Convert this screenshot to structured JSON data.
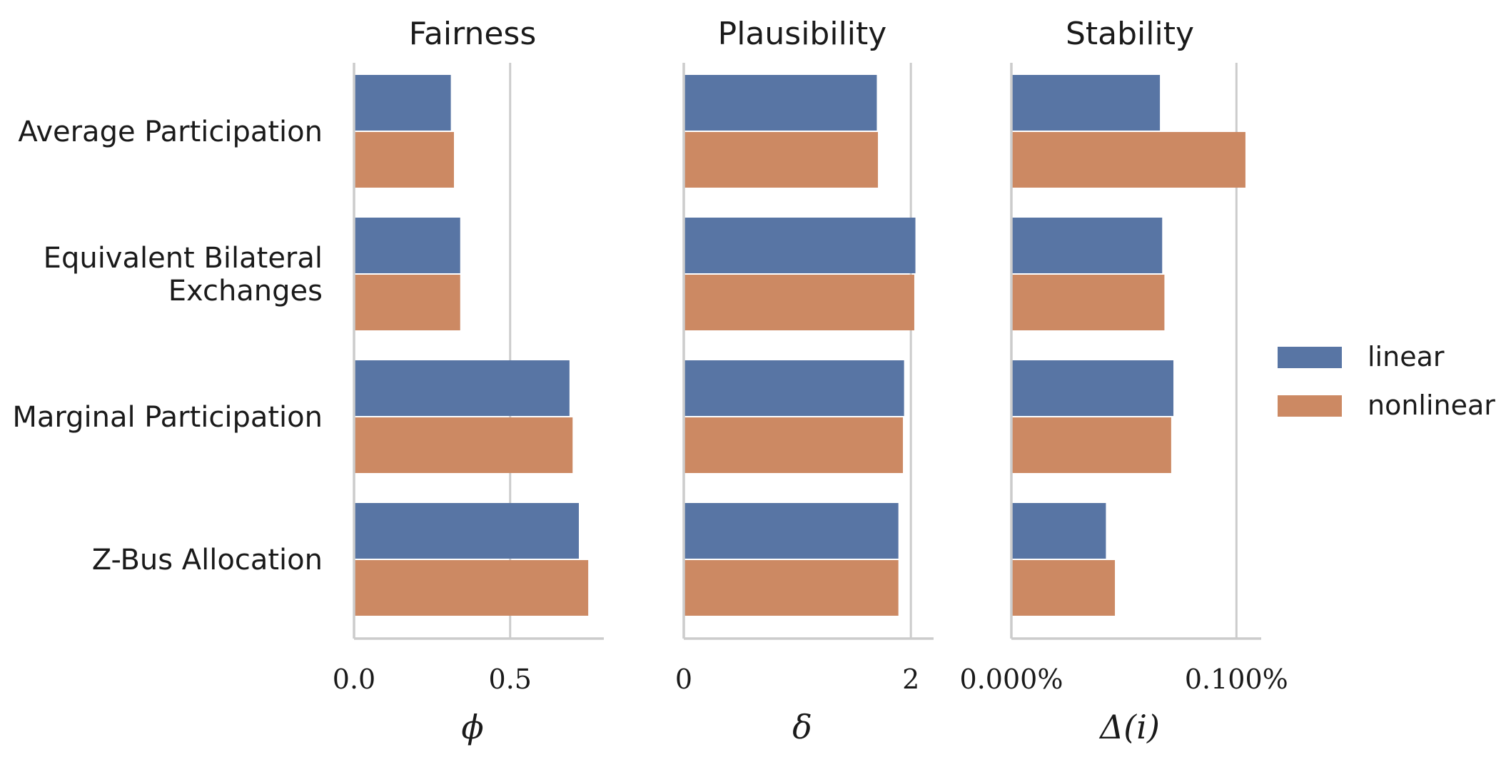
{
  "chart_data": {
    "type": "bar",
    "orientation": "horizontal",
    "categories": [
      [
        "Average Participation"
      ],
      [
        "Equivalent Bilateral",
        "Exchanges"
      ],
      [
        "Marginal Participation"
      ],
      [
        "Z-Bus Allocation"
      ]
    ],
    "legend": {
      "position": "right",
      "entries": [
        "linear",
        "nonlinear"
      ]
    },
    "colors": {
      "linear": "#5875a4",
      "nonlinear": "#cc8963",
      "grid": "#cccccc",
      "axis": "#cccccc"
    },
    "panels": [
      {
        "title": "Fairness",
        "xlabel": "ϕ",
        "xlim": [
          0.0,
          0.8
        ],
        "ticks": [
          0.0,
          0.5
        ],
        "tick_labels": [
          "0.0",
          "0.5"
        ],
        "series": [
          {
            "name": "linear",
            "values": [
              0.31,
              0.34,
              0.69,
              0.72
            ]
          },
          {
            "name": "nonlinear",
            "values": [
              0.32,
              0.34,
              0.7,
              0.75
            ]
          }
        ]
      },
      {
        "title": "Plausibility",
        "xlabel": "δ",
        "xlim": [
          0.0,
          2.2
        ],
        "ticks": [
          0,
          2
        ],
        "tick_labels": [
          "0",
          "2"
        ],
        "series": [
          {
            "name": "linear",
            "values": [
              1.7,
              2.04,
              1.94,
              1.89
            ]
          },
          {
            "name": "nonlinear",
            "values": [
              1.71,
              2.03,
              1.93,
              1.89
            ]
          }
        ]
      },
      {
        "title": "Stability",
        "xlabel": "Δ(i)",
        "xlim": [
          0.0,
          0.111
        ],
        "ticks": [
          0.0,
          0.1
        ],
        "tick_labels": [
          "0.000%",
          "0.100%"
        ],
        "series": [
          {
            "name": "linear",
            "values": [
              0.066,
              0.067,
              0.072,
              0.042
            ]
          },
          {
            "name": "nonlinear",
            "values": [
              0.104,
              0.068,
              0.071,
              0.046
            ]
          }
        ]
      }
    ]
  }
}
